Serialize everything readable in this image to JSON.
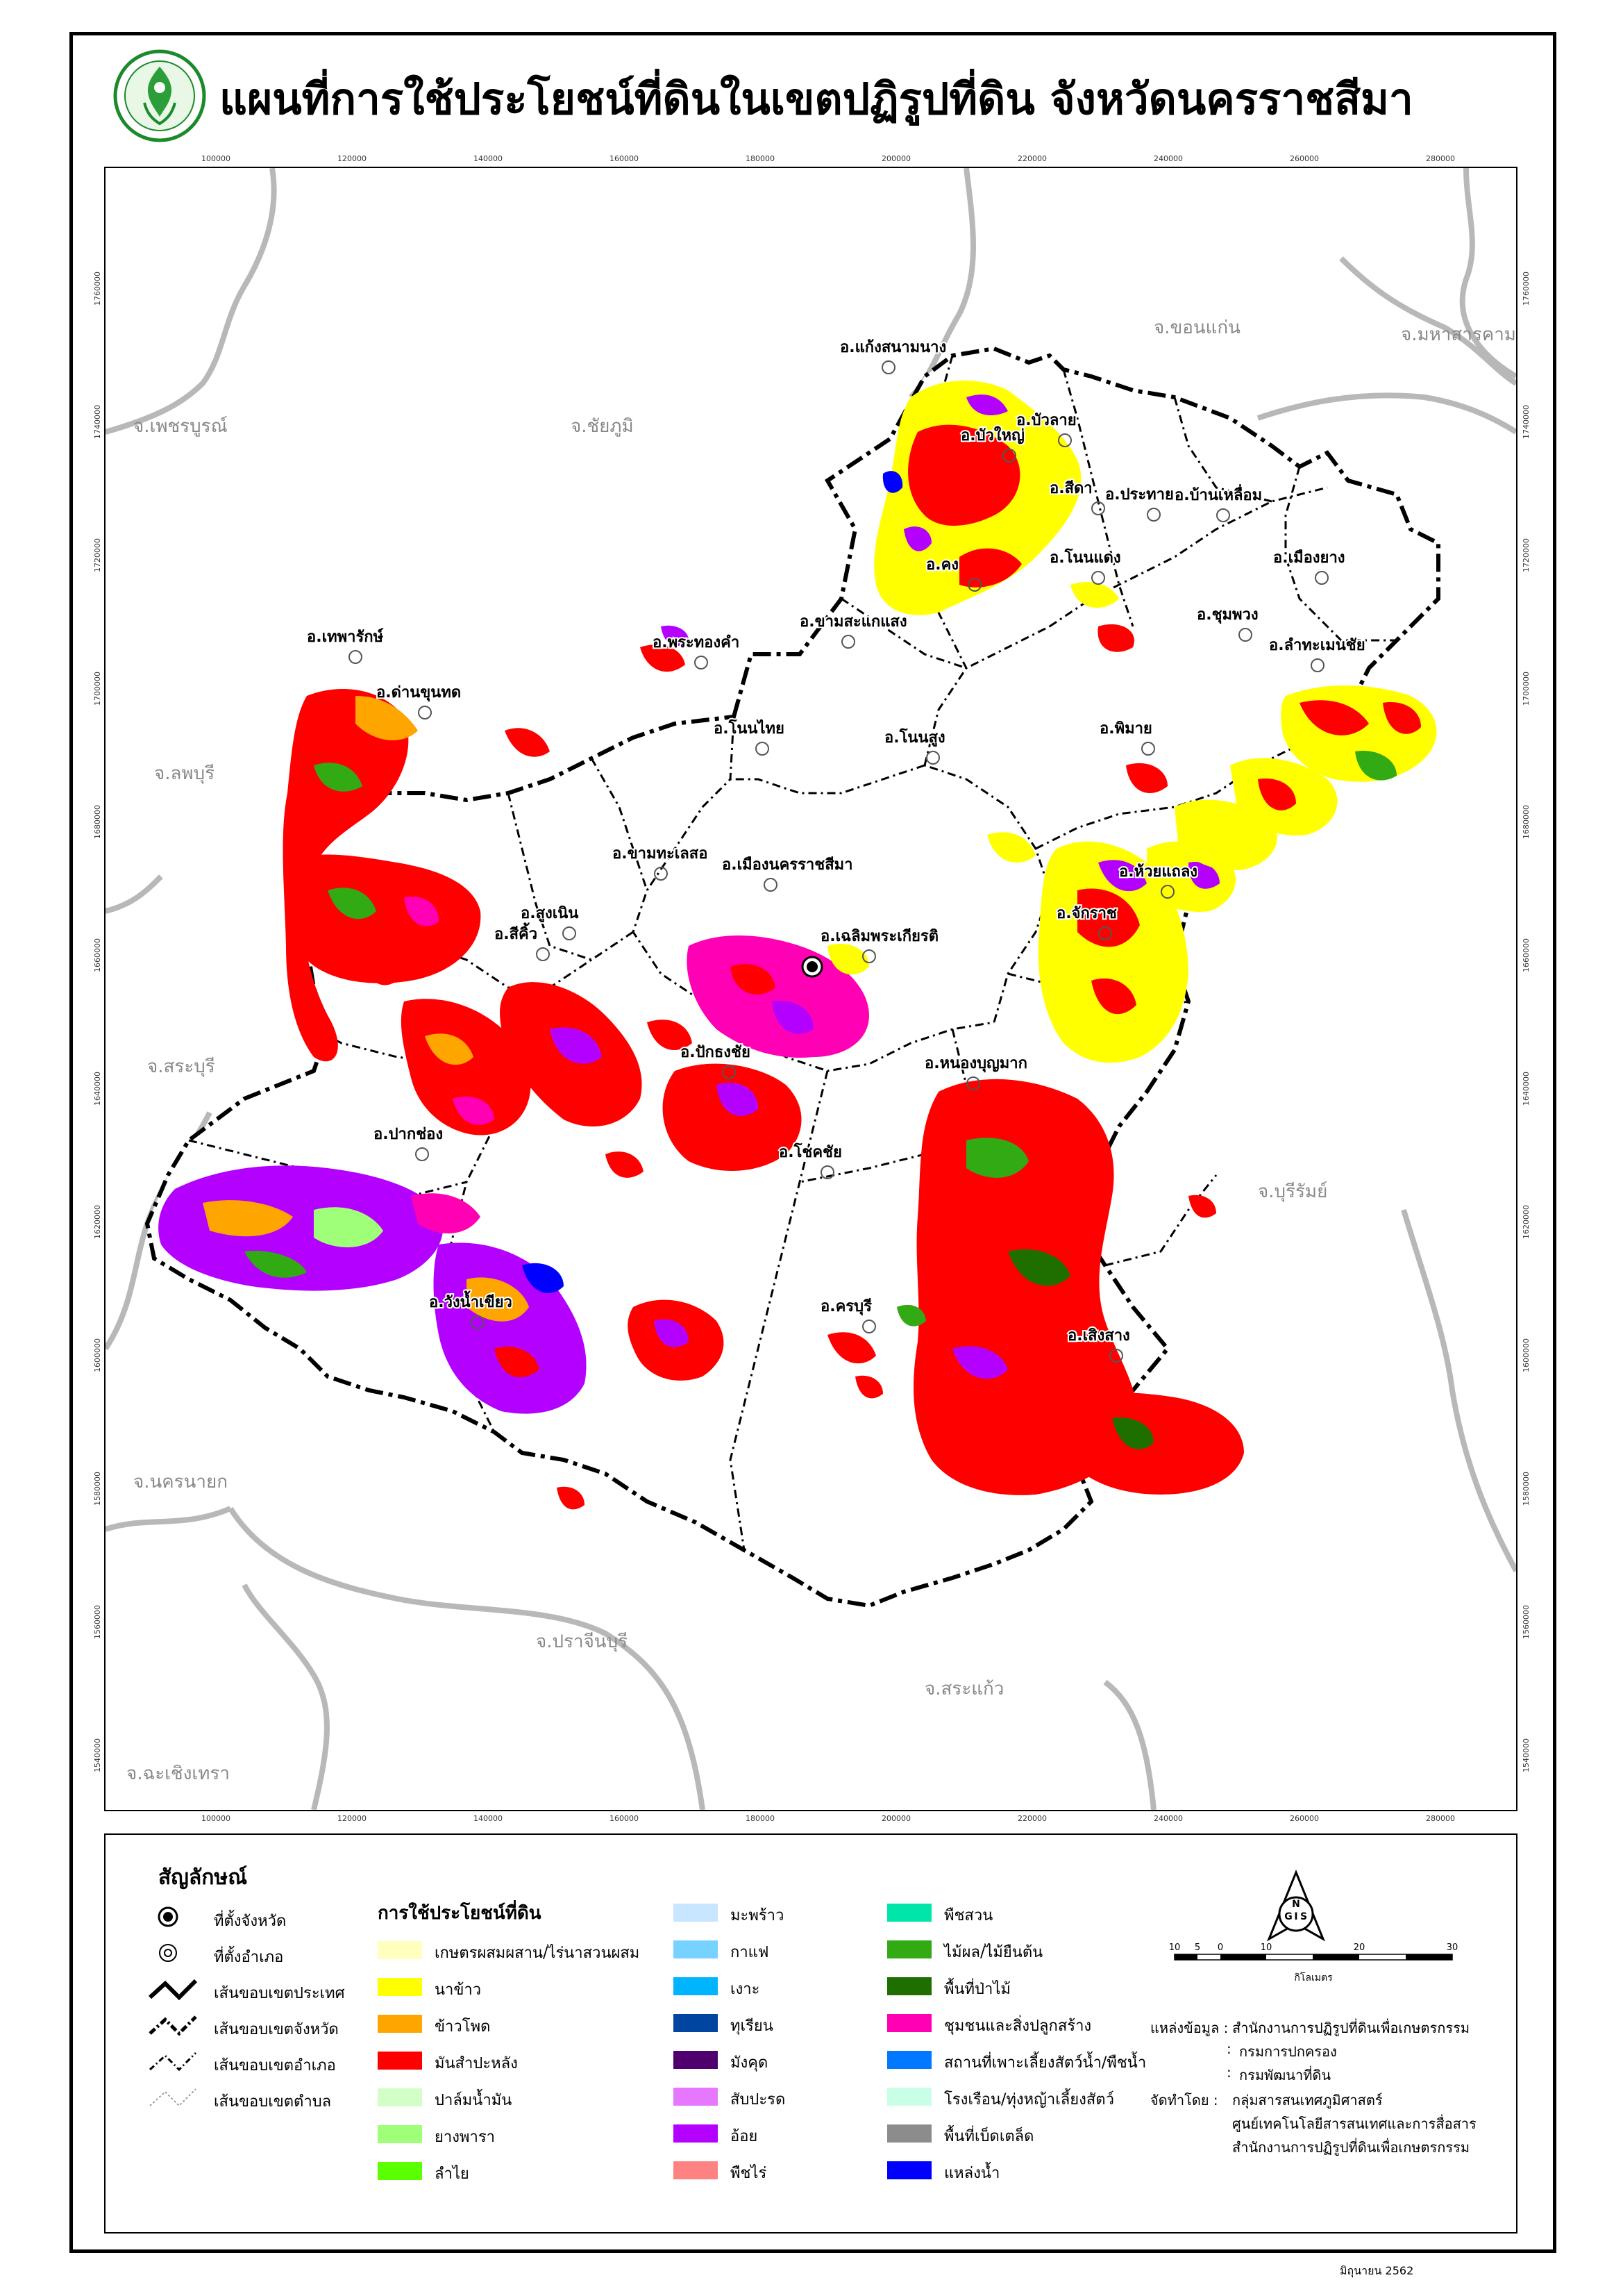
{
  "title": "แผนที่การใช้ประโยชน์ที่ดินในเขตปฏิรูปที่ดิน จังหวัดนครราชสีมา",
  "logo": {
    "name": "alro-seal",
    "text": "สำนักงานการปฏิรูปที่ดินเพื่อเกษตรกรรม"
  },
  "grid": {
    "x_ticks": [
      "100000",
      "120000",
      "140000",
      "160000",
      "180000",
      "200000",
      "220000",
      "240000",
      "260000",
      "280000"
    ],
    "y_ticks": [
      "1760000",
      "1740000",
      "1720000",
      "1700000",
      "1680000",
      "1660000",
      "1640000",
      "1620000",
      "1600000",
      "1580000",
      "1560000",
      "1540000"
    ]
  },
  "map": {
    "provinces": [
      "จ.ขอนแก่น",
      "จ.มหาสารคาม",
      "จ.เพชรบูรณ์",
      "จ.ชัยภูมิ",
      "จ.ลพบุรี",
      "จ.สระบุรี",
      "จ.บุรีรัมย์",
      "จ.นครนายก",
      "จ.ปราจีนบุรี",
      "จ.สระแก้ว",
      "จ.ฉะเชิงเทรา"
    ],
    "districts": [
      "อ.แก้งสนามนาง",
      "อ.บัวลาย",
      "อ.บัวใหญ่",
      "อ.สีดา",
      "อ.ประทาย",
      "อ.บ้านเหลื่อม",
      "อ.คง",
      "อ.โนนแดง",
      "อ.เมืองยาง",
      "อ.ขามสะแกแสง",
      "อ.พระทองคำ",
      "อ.เทพารักษ์",
      "อ.ชุมพวง",
      "อ.ลำทะเมนชัย",
      "อ.ด่านขุนทด",
      "อ.โนนไทย",
      "อ.โนนสูง",
      "อ.พิมาย",
      "อ.ขามทะเลสอ",
      "อ.เมืองนครราชสีมา",
      "อ.ห้วยแถลง",
      "อ.จักราช",
      "อ.สูงเนิน",
      "อ.สีคิ้ว",
      "อ.เฉลิมพระเกียรติ",
      "อ.ปักธงชัย",
      "อ.หนองบุญมาก",
      "อ.ปากช่อง",
      "อ.วังน้ำเขียว",
      "อ.ครบุรี",
      "อ.เสิงสาง",
      "อ.โชคชัย"
    ]
  },
  "legend": {
    "title": "สัญลักษณ์",
    "symbols": [
      {
        "label": "ที่ตั้งจังหวัด",
        "icon": "province-seat"
      },
      {
        "label": "ที่ตั้งอำเภอ",
        "icon": "district-seat"
      },
      {
        "label": "เส้นขอบเขตประเทศ",
        "icon": "country-boundary"
      },
      {
        "label": "เส้นขอบเขตจังหวัด",
        "icon": "province-boundary"
      },
      {
        "label": "เส้นขอบเขตอำเภอ",
        "icon": "district-boundary"
      },
      {
        "label": "เส้นขอบเขตตำบล",
        "icon": "subdistrict-boundary"
      }
    ],
    "landuse_title": "การใช้ประโยชน์ที่ดิน",
    "landuse_col1": [
      {
        "label": "เกษตรผสมผสาน/ไร่นาสวนผสม",
        "color": "#FFFFC0"
      },
      {
        "label": "นาข้าว",
        "color": "#FFFF00"
      },
      {
        "label": "ข้าวโพด",
        "color": "#FFA500"
      },
      {
        "label": "มันสำปะหลัง",
        "color": "#FF0000"
      },
      {
        "label": "ปาล์มน้ำมัน",
        "color": "#D2FFC8"
      },
      {
        "label": "ยางพารา",
        "color": "#A0FF78"
      },
      {
        "label": "ลำไย",
        "color": "#5AFF00"
      }
    ],
    "landuse_col2": [
      {
        "label": "มะพร้าว",
        "color": "#C8E6FF"
      },
      {
        "label": "กาแฟ",
        "color": "#78D2FF"
      },
      {
        "label": "เงาะ",
        "color": "#00B4FF"
      },
      {
        "label": "ทุเรียน",
        "color": "#0046A0"
      },
      {
        "label": "มังคุด",
        "color": "#50006E"
      },
      {
        "label": "สับปะรด",
        "color": "#E678FF"
      },
      {
        "label": "อ้อย",
        "color": "#B400FF"
      },
      {
        "label": "พืชไร่",
        "color": "#FF8282"
      }
    ],
    "landuse_col3": [
      {
        "label": "พืชสวน",
        "color": "#00E6AA"
      },
      {
        "label": "ไม้ผล/ไม้ยืนต้น",
        "color": "#32AA14"
      },
      {
        "label": "พื้นที่ป่าไม้",
        "color": "#1E6E00"
      },
      {
        "label": "ชุมชนและสิ่งปลูกสร้าง",
        "color": "#FF00B4"
      },
      {
        "label": "สถานที่เพาะเลี้ยงสัตว์น้ำ/พืชน้ำ",
        "color": "#0078FF"
      },
      {
        "label": "โรงเรือน/ทุ่งหญ้าเลี้ยงสัตว์",
        "color": "#C8FFE6"
      },
      {
        "label": "พื้นที่เบ็ดเตล็ด",
        "color": "#8C8C8C"
      },
      {
        "label": "แหล่งน้ำ",
        "color": "#0000FF"
      }
    ],
    "scale": {
      "ticks": [
        "10",
        "5",
        "0",
        "10",
        "20",
        "30"
      ],
      "unit": "กิโลเมตร"
    },
    "north_letters": [
      "N",
      "G",
      "I",
      "S"
    ],
    "source_label": "แหล่งข้อมูล :",
    "source_lines": [
      "สำนักงานการปฏิรูปที่ดินเพื่อเกษตรกรรม",
      "กรมการปกครอง",
      "กรมพัฒนาที่ดิน"
    ],
    "made_by_label": "จัดทำโดย :",
    "made_by_lines": [
      "กลุ่มสารสนเทศภูมิศาสตร์",
      "ศูนย์เทคโนโลยีสารสนเทศและการสื่อสาร",
      "สำนักงานการปฏิรูปที่ดินเพื่อเกษตรกรรม"
    ]
  },
  "date": "มิถุนายน 2562"
}
